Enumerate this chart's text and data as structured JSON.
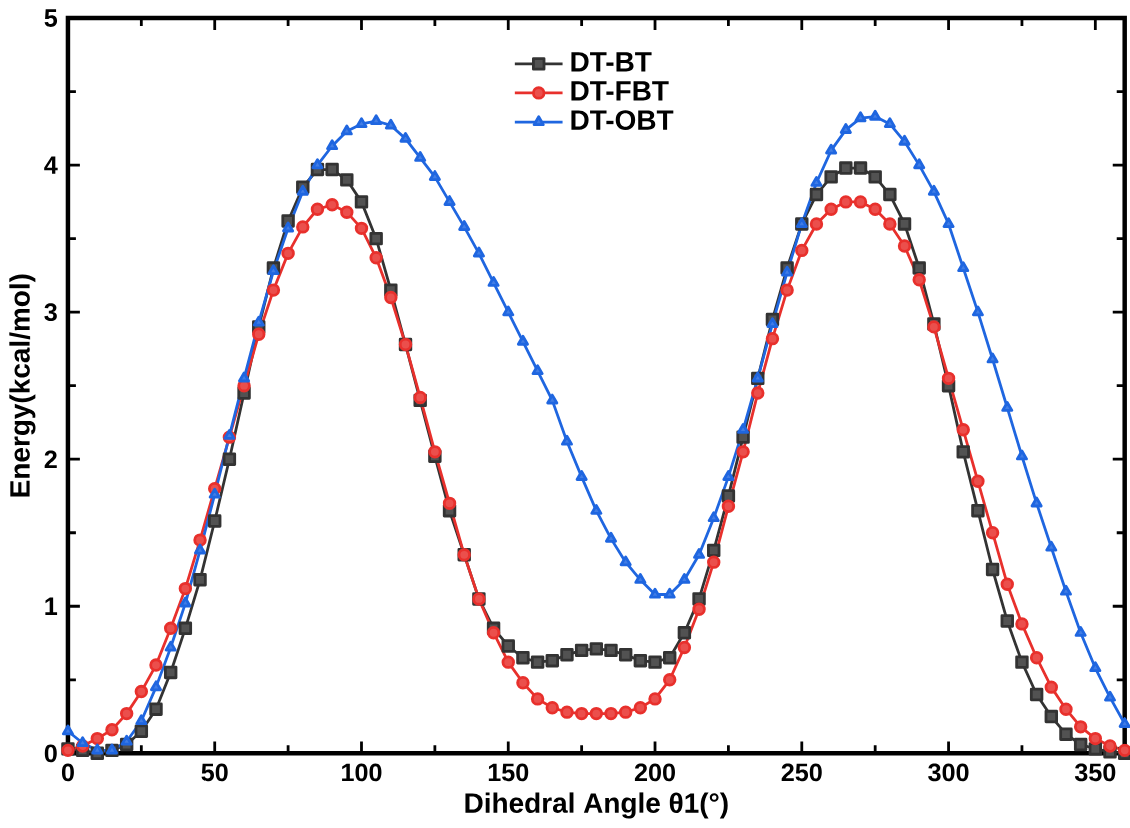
{
  "chart_data": {
    "type": "line",
    "xlabel": "Dihedral Angle θ1(°)",
    "ylabel": "Energy(kcal/mol)",
    "x": [
      0,
      5,
      10,
      15,
      20,
      25,
      30,
      35,
      40,
      45,
      50,
      55,
      60,
      65,
      70,
      75,
      80,
      85,
      90,
      95,
      100,
      105,
      110,
      115,
      120,
      125,
      130,
      135,
      140,
      145,
      150,
      155,
      160,
      165,
      170,
      175,
      180,
      185,
      190,
      195,
      200,
      205,
      210,
      215,
      220,
      225,
      230,
      235,
      240,
      245,
      250,
      255,
      260,
      265,
      270,
      275,
      280,
      285,
      290,
      295,
      300,
      305,
      310,
      315,
      320,
      325,
      330,
      335,
      340,
      345,
      350,
      355,
      360
    ],
    "series": [
      {
        "name": "DT-BT",
        "color": "#333333",
        "marker": "square",
        "values": [
          0.03,
          0.02,
          0.0,
          0.02,
          0.06,
          0.15,
          0.3,
          0.55,
          0.85,
          1.18,
          1.58,
          2.0,
          2.45,
          2.9,
          3.3,
          3.62,
          3.85,
          3.97,
          3.97,
          3.9,
          3.75,
          3.5,
          3.15,
          2.78,
          2.4,
          2.02,
          1.65,
          1.35,
          1.05,
          0.85,
          0.73,
          0.65,
          0.62,
          0.63,
          0.67,
          0.7,
          0.71,
          0.7,
          0.67,
          0.63,
          0.62,
          0.65,
          0.82,
          1.05,
          1.38,
          1.75,
          2.15,
          2.55,
          2.95,
          3.3,
          3.6,
          3.8,
          3.92,
          3.98,
          3.98,
          3.92,
          3.8,
          3.6,
          3.3,
          2.92,
          2.5,
          2.05,
          1.65,
          1.25,
          0.9,
          0.62,
          0.4,
          0.25,
          0.13,
          0.06,
          0.03,
          0.01,
          0.0
        ]
      },
      {
        "name": "DT-FBT",
        "color": "#e8302c",
        "marker": "circle",
        "values": [
          0.02,
          0.05,
          0.1,
          0.16,
          0.27,
          0.42,
          0.6,
          0.85,
          1.12,
          1.45,
          1.8,
          2.15,
          2.5,
          2.85,
          3.15,
          3.4,
          3.58,
          3.7,
          3.73,
          3.68,
          3.57,
          3.37,
          3.1,
          2.78,
          2.42,
          2.05,
          1.7,
          1.35,
          1.05,
          0.82,
          0.62,
          0.48,
          0.37,
          0.31,
          0.28,
          0.27,
          0.27,
          0.27,
          0.28,
          0.31,
          0.37,
          0.5,
          0.72,
          0.98,
          1.3,
          1.68,
          2.05,
          2.45,
          2.82,
          3.15,
          3.42,
          3.6,
          3.7,
          3.75,
          3.75,
          3.7,
          3.6,
          3.45,
          3.22,
          2.9,
          2.55,
          2.2,
          1.85,
          1.5,
          1.15,
          0.88,
          0.65,
          0.45,
          0.3,
          0.18,
          0.1,
          0.05,
          0.02
        ]
      },
      {
        "name": "DT-OBT",
        "color": "#1f66e0",
        "marker": "triangle",
        "values": [
          0.15,
          0.07,
          0.02,
          0.02,
          0.08,
          0.22,
          0.45,
          0.72,
          1.02,
          1.38,
          1.76,
          2.16,
          2.55,
          2.93,
          3.28,
          3.57,
          3.82,
          4.0,
          4.13,
          4.23,
          4.28,
          4.3,
          4.27,
          4.18,
          4.05,
          3.92,
          3.75,
          3.58,
          3.4,
          3.2,
          3.0,
          2.8,
          2.6,
          2.4,
          2.12,
          1.88,
          1.65,
          1.46,
          1.3,
          1.18,
          1.08,
          1.08,
          1.18,
          1.35,
          1.6,
          1.88,
          2.2,
          2.55,
          2.92,
          3.27,
          3.6,
          3.88,
          4.1,
          4.24,
          4.32,
          4.33,
          4.28,
          4.16,
          4.0,
          3.82,
          3.6,
          3.3,
          3.0,
          2.68,
          2.35,
          2.02,
          1.7,
          1.4,
          1.1,
          0.82,
          0.58,
          0.38,
          0.2
        ]
      }
    ],
    "xlim": [
      0,
      360
    ],
    "xticks": [
      0,
      50,
      100,
      150,
      200,
      250,
      300,
      350
    ],
    "ylim": [
      0,
      5
    ],
    "yticks": [
      0,
      1,
      2,
      3,
      4,
      5
    ],
    "grid": false,
    "legend": "top",
    "line_style": "solid"
  }
}
